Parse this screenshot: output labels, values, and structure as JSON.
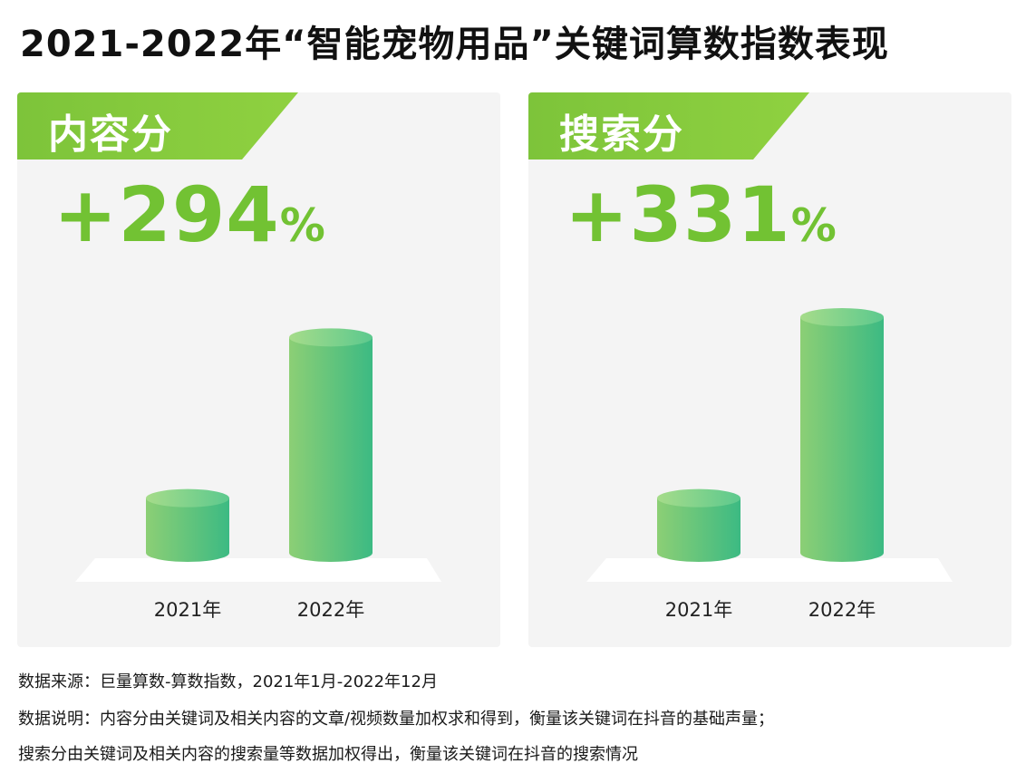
{
  "title": "2021-2022年“智能宠物用品”关键词算数指数表现",
  "colors": {
    "banner": "#7dc43a",
    "highlight": "#72c233",
    "bar_light": "#8ccf75",
    "bar_dark": "#3cba83",
    "panel_bg": "#f4f4f4"
  },
  "panels": [
    {
      "label": "内容分",
      "change_number": "+294",
      "change_unit": "%"
    },
    {
      "label": "搜索分",
      "change_number": "+331",
      "change_unit": "%"
    }
  ],
  "chart_data": [
    {
      "type": "bar",
      "title": "内容分",
      "categories": [
        "2021年",
        "2022年"
      ],
      "values": [
        1,
        3.94
      ],
      "annotations": [
        "+294%"
      ]
    },
    {
      "type": "bar",
      "title": "搜索分",
      "categories": [
        "2021年",
        "2022年"
      ],
      "values": [
        1,
        4.31
      ],
      "annotations": [
        "+331%"
      ]
    }
  ],
  "footer": {
    "source": "数据来源：巨量算数-算数指数，2021年1月-2022年12月",
    "note_line1": "数据说明：内容分由关键词及相关内容的文章/视频数量加权求和得到，衡量该关键词在抖音的基础声量；",
    "note_line2": "搜索分由关键词及相关内容的搜索量等数据加权得出，衡量该关键词在抖音的搜索情况"
  }
}
